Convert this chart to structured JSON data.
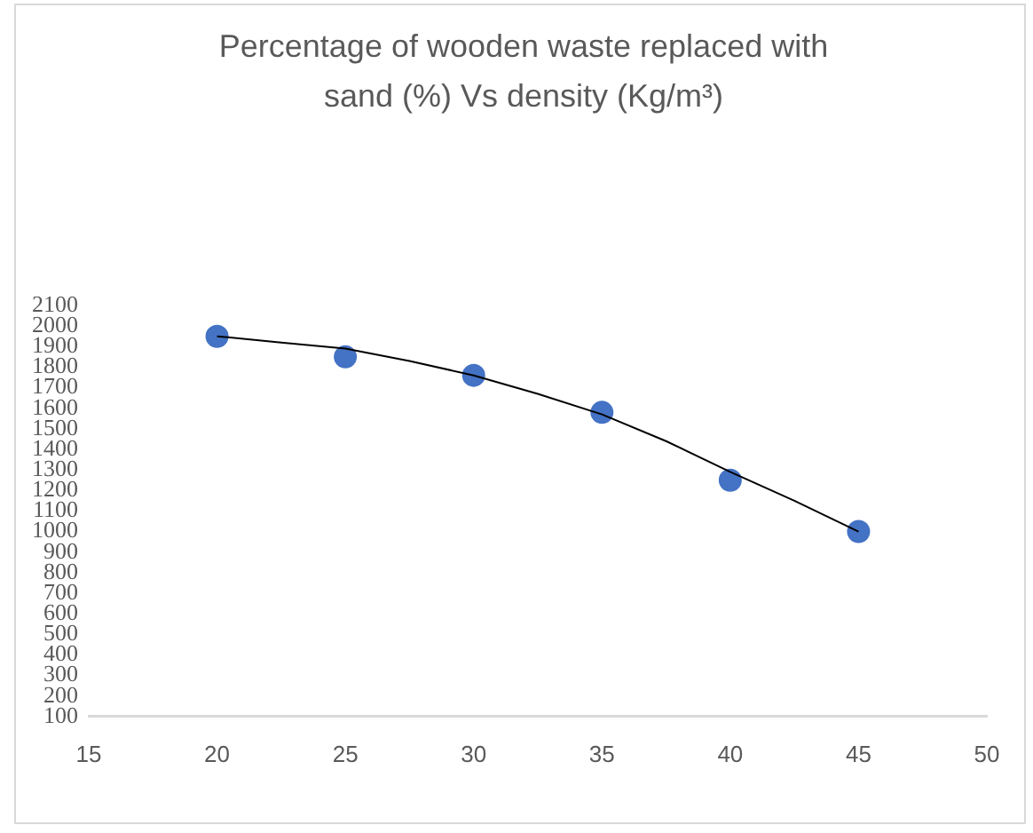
{
  "chart_data": {
    "type": "scatter",
    "title": "Percentage of wooden waste replaced with sand (%) Vs density (Kg/m³)",
    "x": [
      20,
      25,
      30,
      35,
      40,
      45
    ],
    "series": [
      {
        "color": "#4472c4",
        "values": [
          1950,
          1850,
          1760,
          1580,
          1250,
          1000
        ]
      },
      {
        "type": "line",
        "color": "#000000",
        "x": [
          20,
          22.5,
          25,
          27.5,
          30,
          32.5,
          35,
          37.5,
          40,
          42.5,
          45
        ],
        "values": [
          1950,
          1920,
          1890,
          1830,
          1760,
          1670,
          1570,
          1440,
          1290,
          1150,
          1000
        ],
        "marker": "none"
      }
    ],
    "xlim": [
      15,
      50
    ],
    "xticks": [
      15,
      20,
      25,
      30,
      35,
      40,
      45,
      50
    ],
    "ylim": [
      100,
      2100
    ],
    "yticks": [
      100,
      200,
      300,
      400,
      500,
      600,
      700,
      800,
      900,
      1000,
      1100,
      1200,
      1300,
      1400,
      1500,
      1600,
      1700,
      1800,
      1900,
      2000,
      2100
    ],
    "grid": false,
    "legend": false,
    "marker": "circle"
  }
}
